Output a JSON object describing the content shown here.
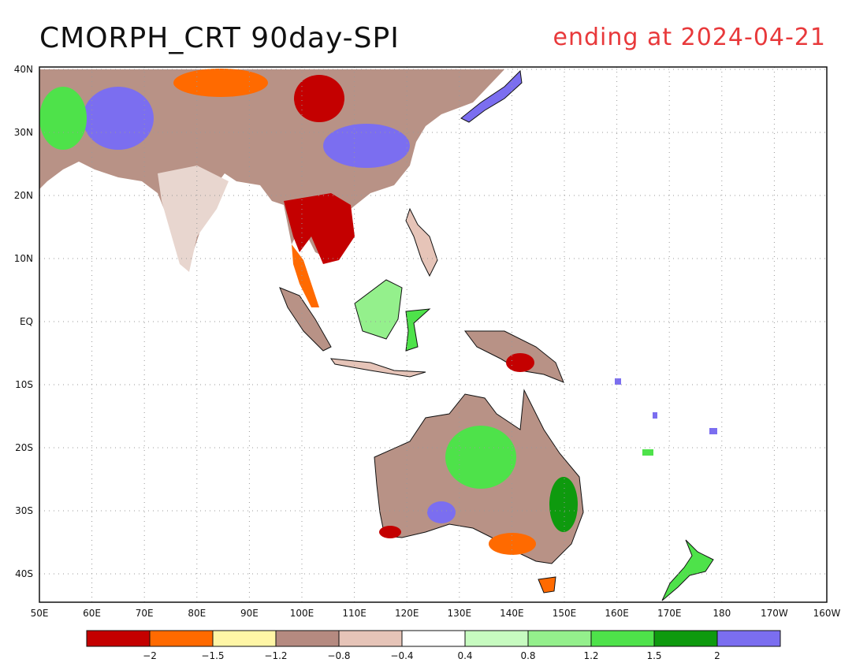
{
  "title": {
    "left": "CMORPH_CRT 90day-SPI",
    "right": "ending at 2024-04-21"
  },
  "map": {
    "lat_labels": [
      "40N",
      "30N",
      "20N",
      "10N",
      "EQ",
      "10S",
      "20S",
      "30S",
      "40S"
    ],
    "lon_labels": [
      "50E",
      "60E",
      "70E",
      "80E",
      "90E",
      "100E",
      "110E",
      "120E",
      "130E",
      "140E",
      "150E",
      "160E",
      "170E",
      "180",
      "170W",
      "160W"
    ],
    "lat_range": [
      -45,
      40
    ],
    "lon_range": [
      50,
      200
    ],
    "grid": "dotted"
  },
  "legend": {
    "colors": [
      "#c40000",
      "#ff6a00",
      "#fff6a6",
      "#b58a80",
      "#e6c4b8",
      "#ffffff",
      "#c7fbc0",
      "#94f08c",
      "#4ee24a",
      "#0e9a0e",
      "#7b6ef0"
    ],
    "labels": [
      "-2",
      "-1.5",
      "-1.2",
      "-0.8",
      "-0.4",
      "0.4",
      "0.8",
      "1.2",
      "1.5",
      "2"
    ]
  }
}
